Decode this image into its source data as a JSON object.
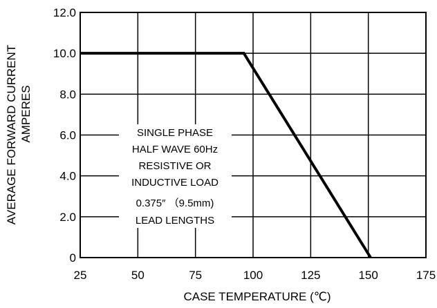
{
  "chart_data": {
    "type": "line",
    "title": "",
    "xlabel": "CASE  TEMPERATURE  (℃)",
    "ylabel_lines": [
      "AVERAGE FORWARD CURRENT",
      "AMPERES"
    ],
    "xlim": [
      25,
      175
    ],
    "ylim": [
      0,
      12
    ],
    "x_ticks": [
      "25",
      "50",
      "75",
      "100",
      "125",
      "150",
      "175"
    ],
    "y_ticks": [
      "0",
      "2.0",
      "4.0",
      "6.0",
      "8.0",
      "10.0",
      "12.0"
    ],
    "grid": true,
    "legend": "none",
    "series": [
      {
        "x": [
          25,
          96,
          151
        ],
        "y": [
          10,
          10,
          0
        ]
      }
    ],
    "annotation_lines": [
      "SINGLE PHASE",
      "HALF WAVE 60Hz",
      "RESISTIVE OR",
      "INDUCTIVE LOAD",
      "0.375″ （9.5mm)",
      "LEAD LENGTHS"
    ]
  }
}
